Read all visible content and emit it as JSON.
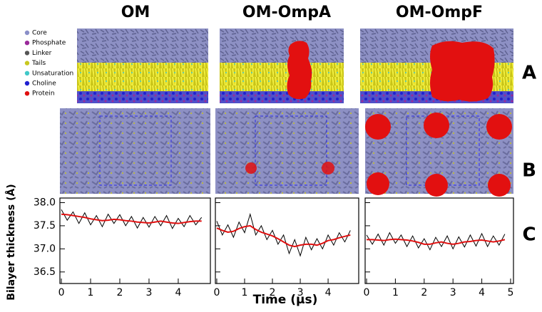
{
  "column_titles": [
    "OM",
    "OM-OmpA",
    "OM-OmpF"
  ],
  "panel_labels": [
    "A",
    "B",
    "C"
  ],
  "legend": [
    {
      "label": "Core",
      "color": "#8a8fc8"
    },
    {
      "label": "Phosphate",
      "color": "#9a2a9a"
    },
    {
      "label": "Linker",
      "color": "#555555"
    },
    {
      "label": "Tails",
      "color": "#c8c820"
    },
    {
      "label": "Unsaturation",
      "color": "#40c8c8"
    },
    {
      "label": "Choline",
      "color": "#2020d0"
    },
    {
      "label": "Protein",
      "color": "#e01010"
    }
  ],
  "ylabel": "Bilayer thickness (Å)",
  "xlabel": "Time (μs)",
  "chart_data": [
    {
      "type": "line",
      "xlim": [
        -0.05,
        5.1
      ],
      "ylim": [
        36.25,
        38.1
      ],
      "xticks": [
        0,
        1,
        2,
        3,
        4
      ],
      "yticks": [
        36.5,
        {
          "value": 37.0,
          "label": "37.0"
        },
        37.5,
        {
          "value": 38.0,
          "label": "38.0"
        }
      ],
      "x": [
        0,
        0.2,
        0.4,
        0.6,
        0.8,
        1.0,
        1.2,
        1.4,
        1.6,
        1.8,
        2.0,
        2.2,
        2.4,
        2.6,
        2.8,
        3.0,
        3.2,
        3.4,
        3.6,
        3.8,
        4.0,
        4.2,
        4.4,
        4.6,
        4.8
      ],
      "series": [
        {
          "color": "#000000",
          "values": [
            37.85,
            37.62,
            37.8,
            37.55,
            37.78,
            37.52,
            37.72,
            37.48,
            37.75,
            37.55,
            37.74,
            37.5,
            37.7,
            37.45,
            37.68,
            37.47,
            37.7,
            37.5,
            37.72,
            37.44,
            37.66,
            37.48,
            37.72,
            37.52,
            37.68
          ]
        },
        {
          "color": "#e01010",
          "values": [
            37.75,
            37.74,
            37.72,
            37.7,
            37.68,
            37.65,
            37.63,
            37.61,
            37.62,
            37.64,
            37.63,
            37.61,
            37.6,
            37.58,
            37.57,
            37.56,
            37.58,
            37.6,
            37.58,
            37.56,
            37.55,
            37.57,
            37.59,
            37.6,
            37.6
          ]
        }
      ]
    },
    {
      "type": "line",
      "xlim": [
        -0.05,
        5.1
      ],
      "ylim": [
        36.25,
        38.1
      ],
      "xticks": [
        0,
        1,
        2,
        3,
        4
      ],
      "yticks": [
        36.5,
        37,
        37.5,
        38
      ],
      "x": [
        0,
        0.2,
        0.4,
        0.6,
        0.8,
        1.0,
        1.2,
        1.4,
        1.6,
        1.8,
        2.0,
        2.2,
        2.4,
        2.6,
        2.8,
        3.0,
        3.2,
        3.4,
        3.6,
        3.8,
        4.0,
        4.2,
        4.4,
        4.6,
        4.8
      ],
      "series": [
        {
          "color": "#000000",
          "values": [
            37.6,
            37.3,
            37.52,
            37.25,
            37.58,
            37.35,
            37.75,
            37.3,
            37.5,
            37.2,
            37.4,
            37.1,
            37.3,
            36.9,
            37.2,
            36.85,
            37.25,
            36.98,
            37.22,
            37.0,
            37.3,
            37.08,
            37.35,
            37.15,
            37.4
          ]
        },
        {
          "color": "#e01010",
          "values": [
            37.45,
            37.4,
            37.36,
            37.38,
            37.44,
            37.48,
            37.5,
            37.42,
            37.36,
            37.32,
            37.28,
            37.22,
            37.15,
            37.08,
            37.05,
            37.08,
            37.1,
            37.1,
            37.08,
            37.12,
            37.18,
            37.2,
            37.24,
            37.27,
            37.3
          ]
        }
      ]
    },
    {
      "type": "line",
      "xlim": [
        -0.05,
        5.1
      ],
      "ylim": [
        36.25,
        38.1
      ],
      "xticks": [
        0,
        1,
        2,
        3,
        4,
        5
      ],
      "yticks": [
        36.5,
        37,
        37.5,
        38
      ],
      "x": [
        0,
        0.2,
        0.4,
        0.6,
        0.8,
        1.0,
        1.2,
        1.4,
        1.6,
        1.8,
        2.0,
        2.2,
        2.4,
        2.6,
        2.8,
        3.0,
        3.2,
        3.4,
        3.6,
        3.8,
        4.0,
        4.2,
        4.4,
        4.6,
        4.8
      ],
      "series": [
        {
          "color": "#000000",
          "values": [
            37.3,
            37.1,
            37.32,
            37.08,
            37.35,
            37.12,
            37.3,
            37.05,
            37.28,
            37.02,
            37.22,
            36.98,
            37.25,
            37.05,
            37.28,
            37.0,
            37.26,
            37.04,
            37.3,
            37.06,
            37.33,
            37.05,
            37.28,
            37.08,
            37.32
          ]
        },
        {
          "color": "#e01010",
          "values": [
            37.2,
            37.2,
            37.19,
            37.18,
            37.2,
            37.21,
            37.2,
            37.19,
            37.17,
            37.14,
            37.1,
            37.1,
            37.13,
            37.15,
            37.12,
            37.1,
            37.12,
            37.15,
            37.16,
            37.18,
            37.19,
            37.17,
            37.15,
            37.17,
            37.2
          ]
        }
      ]
    }
  ]
}
